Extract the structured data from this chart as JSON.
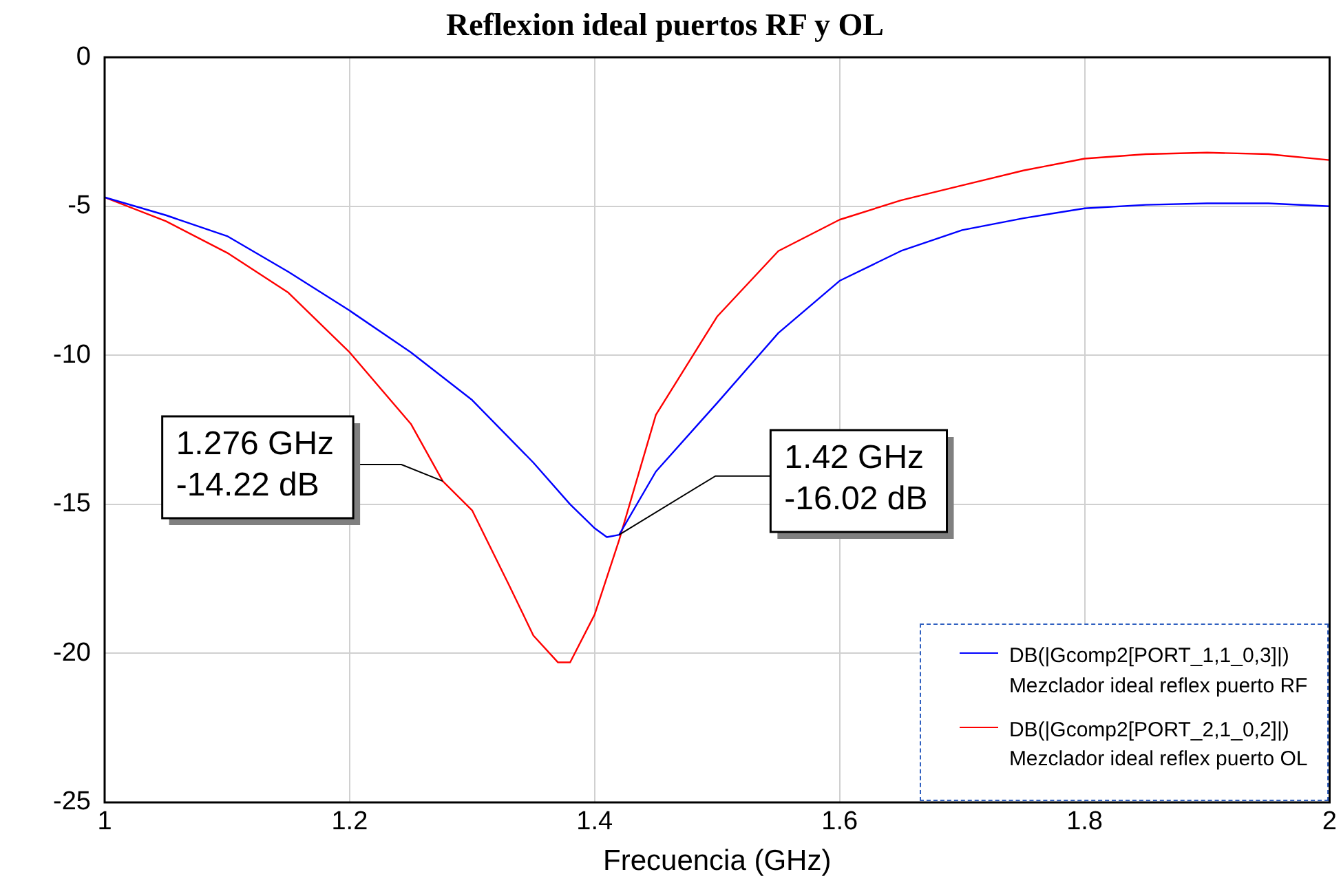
{
  "chart_data": {
    "type": "line",
    "title": "Reflexion ideal puertos RF y OL",
    "xlabel": "Frecuencia (GHz)",
    "xlim": [
      1,
      2
    ],
    "xticks": [
      1,
      1.2,
      1.4,
      1.6,
      1.8,
      2
    ],
    "ylim": [
      -25,
      0
    ],
    "yticks": [
      0,
      -5,
      -10,
      -15,
      -20,
      -25
    ],
    "grid": true,
    "legend": "bottom right",
    "marker": "none",
    "line_style": "solid",
    "series": [
      {
        "name": "DB(|Gcomp2[PORT_1,1_0,3]|)\nMezclador ideal reflex puerto RF",
        "color": "#0000ff",
        "x": [
          1,
          1.05,
          1.1,
          1.15,
          1.2,
          1.25,
          1.3,
          1.35,
          1.38,
          1.4,
          1.41,
          1.42,
          1.45,
          1.5,
          1.55,
          1.6,
          1.65,
          1.7,
          1.75,
          1.8,
          1.85,
          1.9,
          1.95,
          2
        ],
        "values": [
          -4.7,
          -5.3,
          -6.0,
          -7.2,
          -8.5,
          -9.9,
          -11.5,
          -13.6,
          -15.0,
          -15.8,
          -16.1,
          -16.02,
          -13.9,
          -11.6,
          -9.25,
          -7.5,
          -6.5,
          -5.8,
          -5.4,
          -5.07,
          -4.95,
          -4.9,
          -4.9,
          -5.0
        ]
      },
      {
        "name": "DB(|Gcomp2[PORT_2,1_0,2]|)\nMezclador ideal reflex puerto OL",
        "color": "#ff0000",
        "x": [
          1,
          1.05,
          1.1,
          1.15,
          1.2,
          1.25,
          1.276,
          1.3,
          1.33,
          1.35,
          1.37,
          1.38,
          1.4,
          1.42,
          1.45,
          1.5,
          1.55,
          1.6,
          1.65,
          1.7,
          1.75,
          1.8,
          1.85,
          1.9,
          1.95,
          2
        ],
        "values": [
          -4.7,
          -5.5,
          -6.56,
          -7.9,
          -9.9,
          -12.3,
          -14.22,
          -15.2,
          -17.7,
          -19.4,
          -20.3,
          -20.3,
          -18.7,
          -16.2,
          -12.0,
          -8.7,
          -6.5,
          -5.45,
          -4.8,
          -4.3,
          -3.8,
          -3.4,
          -3.25,
          -3.2,
          -3.25,
          -3.45
        ]
      }
    ],
    "annotations": [
      {
        "text": "1.276 GHz\n-14.22 dB",
        "x": 1.276,
        "y": -14.22
      },
      {
        "text": "1.42 GHz\n-16.02 dB",
        "x": 1.42,
        "y": -16.02
      }
    ]
  }
}
